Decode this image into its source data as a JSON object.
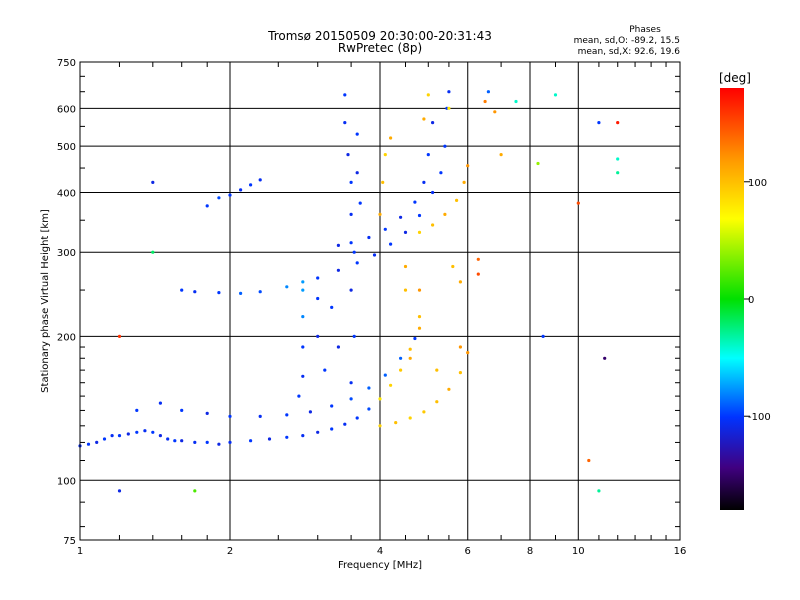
{
  "chart_data": {
    "type": "scatter",
    "title": "Tromsø 20150509 20:30:00-20:31:43",
    "subtitle": "RwPretec (8p)",
    "xlabel": "Frequency [MHz]",
    "ylabel": "Stationary phase Virtual Height [km]",
    "x_scale": "log",
    "y_scale": "log",
    "xlim": [
      1,
      16
    ],
    "ylim": [
      75,
      750
    ],
    "x_ticks": [
      1,
      2,
      4,
      6,
      8,
      10,
      16
    ],
    "y_ticks": [
      75,
      100,
      200,
      300,
      400,
      500,
      600,
      750
    ],
    "grid": true,
    "stats": {
      "heading": "Phases",
      "o_line": "mean, sd,O: -89.2, 15.5",
      "x_line": "mean, sd,X:  92.6, 19.6"
    },
    "colorbar": {
      "label": "[deg]",
      "range": [
        -180,
        180
      ],
      "ticks": [
        100,
        0,
        -100
      ]
    },
    "series": [
      {
        "points": [
          [
            1.0,
            118,
            -105
          ],
          [
            1.04,
            119,
            -100
          ],
          [
            1.08,
            120,
            -110
          ],
          [
            1.12,
            122,
            -100
          ],
          [
            1.16,
            124,
            -105
          ],
          [
            1.2,
            124,
            -100
          ],
          [
            1.25,
            125,
            -110
          ],
          [
            1.3,
            126,
            -100
          ],
          [
            1.35,
            127,
            -105
          ],
          [
            1.4,
            126,
            -100
          ],
          [
            1.45,
            124,
            -110
          ],
          [
            1.5,
            122,
            -105
          ],
          [
            1.55,
            121,
            -100
          ],
          [
            1.6,
            121,
            -110
          ],
          [
            1.7,
            120,
            -105
          ],
          [
            1.8,
            120,
            -100
          ],
          [
            1.9,
            119,
            -110
          ],
          [
            2.0,
            120,
            -105
          ],
          [
            2.2,
            121,
            -100
          ],
          [
            2.4,
            122,
            -110
          ],
          [
            2.6,
            123,
            -100
          ],
          [
            2.8,
            124,
            -105
          ],
          [
            3.0,
            126,
            -110
          ],
          [
            3.2,
            128,
            -100
          ],
          [
            3.4,
            131,
            -105
          ],
          [
            3.6,
            135,
            -100
          ],
          [
            3.8,
            141,
            -95
          ],
          [
            4.0,
            148,
            80
          ],
          [
            4.2,
            158,
            90
          ],
          [
            4.4,
            170,
            95
          ],
          [
            4.6,
            188,
            100
          ],
          [
            4.8,
            208,
            110
          ]
        ]
      },
      {
        "points": [
          [
            1.3,
            140,
            -100
          ],
          [
            1.45,
            145,
            -105
          ],
          [
            1.6,
            140,
            -100
          ],
          [
            1.8,
            138,
            -110
          ],
          [
            2.0,
            136,
            -100
          ],
          [
            2.3,
            136,
            -105
          ],
          [
            2.6,
            137,
            -100
          ],
          [
            2.9,
            139,
            -110
          ],
          [
            3.2,
            143,
            -100
          ],
          [
            3.5,
            148,
            -95
          ],
          [
            3.8,
            156,
            -90
          ],
          [
            4.1,
            166,
            -90
          ],
          [
            4.4,
            180,
            -90
          ],
          [
            4.7,
            198,
            -100
          ]
        ]
      },
      {
        "points": [
          [
            4.0,
            130,
            90
          ],
          [
            4.3,
            132,
            100
          ],
          [
            4.6,
            135,
            90
          ],
          [
            4.9,
            139,
            95
          ],
          [
            5.2,
            146,
            100
          ],
          [
            5.5,
            155,
            110
          ],
          [
            5.8,
            168,
            100
          ],
          [
            6.0,
            185,
            120
          ]
        ]
      },
      {
        "points": [
          [
            1.6,
            250,
            -100
          ],
          [
            1.7,
            248,
            -105
          ],
          [
            1.9,
            247,
            -100
          ],
          [
            2.1,
            246,
            -90
          ],
          [
            2.3,
            248,
            -95
          ],
          [
            2.6,
            254,
            -80
          ],
          [
            2.8,
            260,
            -75
          ],
          [
            3.0,
            265,
            -100
          ],
          [
            3.3,
            275,
            -110
          ],
          [
            3.6,
            285,
            -100
          ],
          [
            3.9,
            296,
            -105
          ],
          [
            4.2,
            312,
            -100
          ],
          [
            4.5,
            330,
            -110
          ],
          [
            4.8,
            358,
            -100
          ],
          [
            5.1,
            400,
            -105
          ],
          [
            5.3,
            440,
            -100
          ],
          [
            5.4,
            500,
            -100
          ],
          [
            5.45,
            600,
            -100
          ],
          [
            5.5,
            650,
            -105
          ]
        ]
      },
      {
        "points": [
          [
            3.3,
            310,
            -110
          ],
          [
            3.5,
            314,
            -100
          ],
          [
            3.8,
            322,
            -105
          ],
          [
            4.1,
            335,
            -100
          ],
          [
            4.4,
            355,
            -110
          ],
          [
            4.7,
            382,
            -100
          ],
          [
            4.9,
            420,
            -105
          ],
          [
            5.0,
            480,
            -100
          ],
          [
            5.1,
            560,
            -110
          ]
        ]
      },
      {
        "points": [
          [
            4.8,
            330,
            90
          ],
          [
            5.1,
            342,
            100
          ],
          [
            5.4,
            360,
            110
          ],
          [
            5.7,
            385,
            100
          ],
          [
            5.9,
            420,
            110
          ],
          [
            6.0,
            455,
            120
          ]
        ]
      },
      {
        "points": [
          [
            1.8,
            375,
            -100
          ],
          [
            1.9,
            390,
            -95
          ],
          [
            2.0,
            395,
            -100
          ],
          [
            2.1,
            405,
            -105
          ],
          [
            2.2,
            415,
            -100
          ],
          [
            2.3,
            425,
            -105
          ]
        ]
      },
      {
        "points": [
          [
            3.4,
            640,
            -100
          ],
          [
            3.4,
            560,
            -105
          ],
          [
            3.45,
            480,
            -110
          ],
          [
            3.5,
            420,
            -100
          ],
          [
            3.5,
            360,
            -105
          ],
          [
            3.55,
            300,
            -100
          ],
          [
            3.5,
            250,
            -110
          ],
          [
            3.55,
            200,
            -100
          ],
          [
            3.5,
            160,
            -105
          ],
          [
            3.6,
            530,
            -100
          ],
          [
            3.6,
            440,
            -110
          ],
          [
            3.65,
            380,
            -100
          ]
        ]
      },
      {
        "points": [
          [
            2.8,
            250,
            -75
          ],
          [
            2.8,
            220,
            -80
          ],
          [
            2.8,
            190,
            -100
          ],
          [
            2.8,
            165,
            -105
          ],
          [
            2.75,
            150,
            -100
          ],
          [
            3.0,
            240,
            -100
          ],
          [
            3.0,
            200,
            -110
          ],
          [
            3.1,
            170,
            -100
          ],
          [
            3.2,
            230,
            -100
          ],
          [
            3.3,
            190,
            -110
          ]
        ]
      },
      {
        "points": [
          [
            4.05,
            420,
            100
          ],
          [
            4.0,
            360,
            110
          ],
          [
            4.1,
            480,
            90
          ],
          [
            4.2,
            520,
            110
          ],
          [
            4.5,
            250,
            100
          ],
          [
            4.5,
            280,
            110
          ],
          [
            4.8,
            220,
            100
          ],
          [
            4.8,
            250,
            120
          ],
          [
            4.9,
            570,
            110
          ],
          [
            5.0,
            640,
            90
          ],
          [
            5.5,
            600,
            80
          ],
          [
            5.6,
            280,
            100
          ],
          [
            5.8,
            260,
            110
          ],
          [
            4.6,
            180,
            110
          ],
          [
            5.2,
            170,
            100
          ],
          [
            5.8,
            190,
            120
          ]
        ]
      },
      {
        "points": [
          [
            6.5,
            620,
            130
          ],
          [
            6.8,
            590,
            120
          ],
          [
            7.0,
            480,
            110
          ],
          [
            6.3,
            290,
            140
          ],
          [
            6.3,
            270,
            150
          ],
          [
            7.5,
            620,
            -40
          ],
          [
            8.5,
            200,
            -100
          ],
          [
            10.0,
            380,
            150
          ],
          [
            11.0,
            560,
            -100
          ],
          [
            12.0,
            560,
            170
          ],
          [
            11.3,
            180,
            -150
          ],
          [
            12.0,
            470,
            -40
          ],
          [
            12.0,
            440,
            -30
          ],
          [
            10.5,
            110,
            140
          ],
          [
            11.0,
            95,
            -30
          ],
          [
            1.2,
            95,
            -110
          ],
          [
            1.7,
            95,
            20
          ],
          [
            1.2,
            200,
            160
          ],
          [
            1.4,
            420,
            -110
          ],
          [
            1.4,
            300,
            -20
          ],
          [
            6.6,
            650,
            -90
          ],
          [
            8.3,
            460,
            40
          ],
          [
            9.0,
            640,
            -40
          ]
        ]
      }
    ]
  }
}
